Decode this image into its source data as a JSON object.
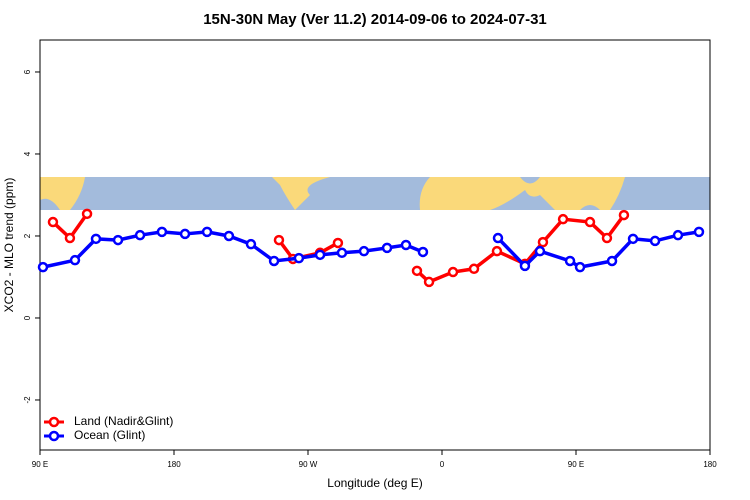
{
  "chart_data": {
    "type": "line",
    "title": "15N-30N May (Ver 11.2)   2014-09-06 to 2024-07-31",
    "xlabel": "Longitude (deg E)",
    "ylabel": "XCO2 - MLO trend (ppm)",
    "xlim": [
      90,
      540
    ],
    "ylim": [
      -3.22,
      6.78
    ],
    "xticks": [
      {
        "value": 90,
        "label": "90 E"
      },
      180,
      {
        "value": 270,
        "label": "90 W"
      },
      {
        "value": 360,
        "label": "0"
      },
      {
        "value": 450,
        "label": "90 E"
      },
      {
        "value": 540,
        "label": "180"
      }
    ],
    "yticks": [
      -2,
      0,
      2,
      4,
      6
    ],
    "legend": "bottom-left",
    "series": [
      {
        "name": "Land (Nadir&Glint)",
        "color": "#ff0000",
        "x": [
          98.7,
          110.1,
          121.6,
          null,
          250.5,
          259.9,
          278.1,
          290.1,
          null,
          343.2,
          351.3,
          367.4,
          381.5,
          396.9,
          415.7,
          427.8,
          441.3,
          459.4,
          470.8,
          482.2
        ],
        "values": [
          2.34,
          1.95,
          2.54,
          null,
          1.9,
          1.44,
          1.59,
          1.83,
          null,
          1.15,
          0.88,
          1.12,
          1.2,
          1.63,
          1.32,
          1.85,
          2.41,
          2.34,
          1.95,
          2.51
        ]
      },
      {
        "name": "Ocean (Glint)",
        "color": "#0000ff",
        "x": [
          92.0,
          113.5,
          127.6,
          142.4,
          157.2,
          171.9,
          187.4,
          202.2,
          216.9,
          231.7,
          247.2,
          263.9,
          278.1,
          292.8,
          307.6,
          323.1,
          335.8,
          347.2,
          null,
          397.6,
          415.7,
          425.8,
          446.0,
          452.7,
          474.2,
          488.3,
          503.1,
          518.5,
          532.6
        ],
        "values": [
          1.24,
          1.41,
          1.93,
          1.9,
          2.02,
          2.1,
          2.05,
          2.1,
          2.0,
          1.8,
          1.39,
          1.46,
          1.54,
          1.59,
          1.63,
          1.71,
          1.78,
          1.61,
          null,
          1.95,
          1.27,
          1.63,
          1.39,
          1.24,
          1.39,
          1.93,
          1.88,
          2.02,
          2.1
        ]
      }
    ]
  }
}
